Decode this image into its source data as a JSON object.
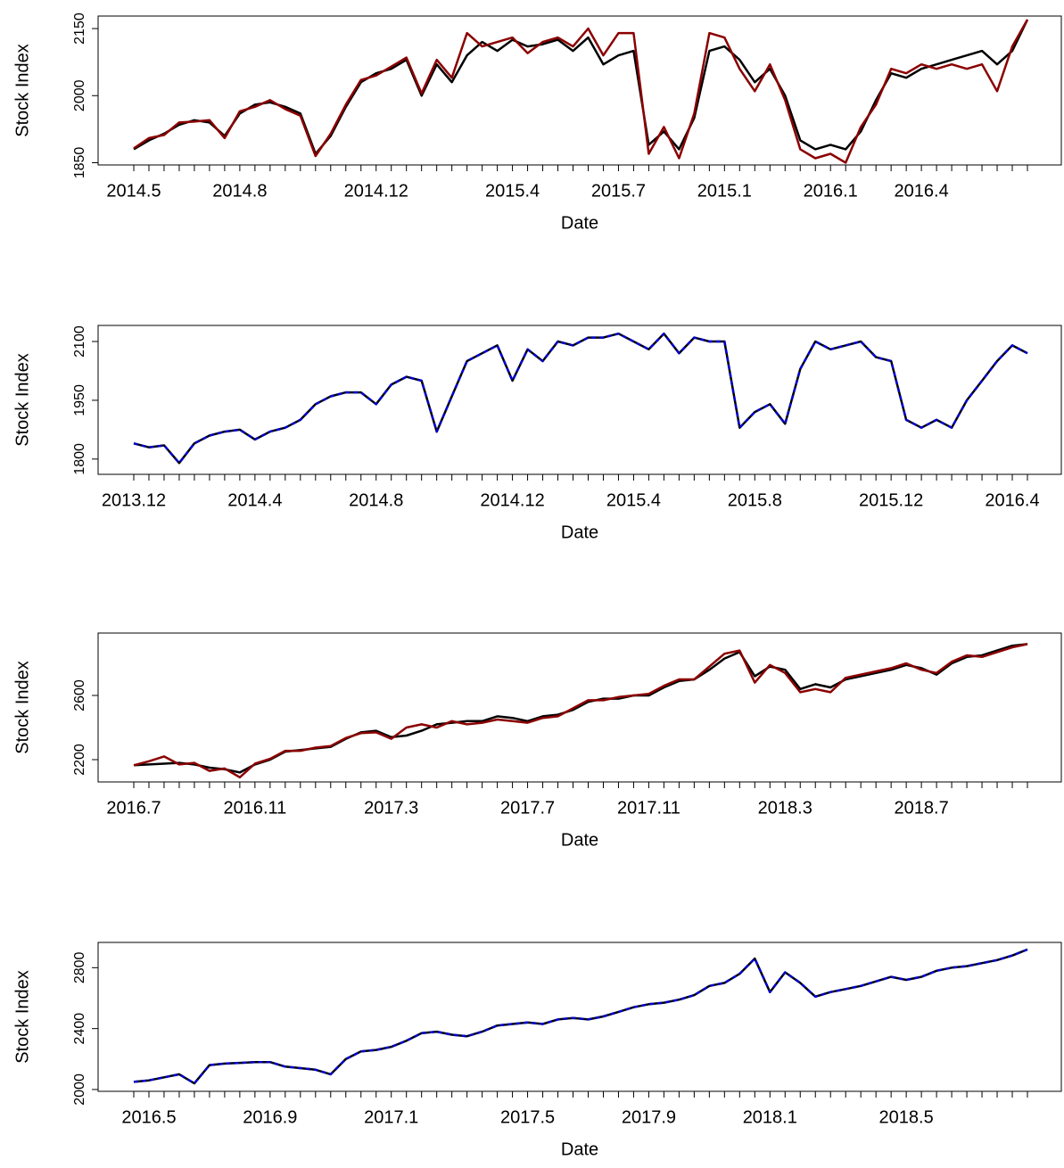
{
  "chart_data": [
    {
      "type": "line",
      "xlabel": "Date",
      "ylabel": "Stock Index",
      "ylim": [
        1845,
        2178
      ],
      "yticks": [
        1850,
        2000,
        2150
      ],
      "categories": [
        "2014.5",
        null,
        null,
        null,
        null,
        null,
        null,
        "2014.8",
        null,
        null,
        null,
        null,
        null,
        null,
        null,
        null,
        "2014.12",
        null,
        null,
        null,
        null,
        null,
        null,
        null,
        null,
        "2015.4",
        null,
        null,
        null,
        null,
        null,
        null,
        "2015.7",
        null,
        null,
        null,
        null,
        null,
        null,
        "2015.1",
        null,
        null,
        null,
        null,
        null,
        null,
        "2016.1",
        null,
        null,
        null,
        null,
        null,
        "2016.4",
        null,
        null,
        null,
        null,
        null,
        null,
        null
      ],
      "series": [
        {
          "color": "#000000",
          "linestyle": "solid",
          "values": [
            1880,
            1900,
            1915,
            1935,
            1945,
            1940,
            1910,
            1960,
            1980,
            1985,
            1975,
            1960,
            1870,
            1910,
            1975,
            2030,
            2050,
            2060,
            2080,
            2000,
            2070,
            2030,
            2090,
            2120,
            2100,
            2125,
            2110,
            2115,
            2125,
            2100,
            2130,
            2070,
            2090,
            2100,
            1890,
            1920,
            1880,
            1950,
            2100,
            2110,
            2080,
            2030,
            2060,
            2000,
            1900,
            1880,
            1890,
            1880,
            1920,
            1990,
            2050,
            2040,
            2060,
            2070,
            2080,
            2090,
            2100,
            2070,
            2100,
            2170
          ]
        },
        {
          "color": "#8b0000",
          "linestyle": "solid",
          "values": [
            1882,
            1905,
            1912,
            1940,
            1942,
            1945,
            1905,
            1965,
            1975,
            1990,
            1970,
            1955,
            1865,
            1915,
            1980,
            2035,
            2045,
            2065,
            2085,
            2005,
            2080,
            2040,
            2140,
            2110,
            2120,
            2130,
            2095,
            2120,
            2130,
            2110,
            2150,
            2090,
            2140,
            2140,
            1870,
            1930,
            1860,
            1960,
            2140,
            2130,
            2060,
            2010,
            2070,
            1990,
            1880,
            1860,
            1870,
            1850,
            1930,
            1980,
            2060,
            2050,
            2070,
            2060,
            2070,
            2060,
            2070,
            2010,
            2110,
            2170
          ]
        }
      ]
    },
    {
      "type": "line",
      "xlabel": "Date",
      "ylabel": "Stock Index",
      "ylim": [
        1761,
        2141
      ],
      "yticks": [
        1800,
        1950,
        2100
      ],
      "categories": [
        "2013.12",
        null,
        null,
        null,
        null,
        null,
        null,
        null,
        "2014.4",
        null,
        null,
        null,
        null,
        null,
        null,
        null,
        "2014.8",
        null,
        null,
        null,
        null,
        null,
        null,
        null,
        null,
        "2014.12",
        null,
        null,
        null,
        null,
        null,
        null,
        null,
        "2015.4",
        null,
        null,
        null,
        null,
        null,
        null,
        null,
        "2015.8",
        null,
        null,
        null,
        null,
        null,
        null,
        null,
        null,
        "2015.12",
        null,
        null,
        null,
        null,
        null,
        null,
        null,
        "2016.4",
        null
      ],
      "series": [
        {
          "color": "#000000",
          "linestyle": "solid",
          "values": [
            1840,
            1830,
            1835,
            1790,
            1840,
            1860,
            1870,
            1875,
            1850,
            1870,
            1880,
            1900,
            1940,
            1960,
            1970,
            1970,
            1940,
            1990,
            2010,
            2000,
            1870,
            1960,
            2050,
            2070,
            2090,
            2000,
            2080,
            2050,
            2100,
            2090,
            2110,
            2110,
            2120,
            2100,
            2080,
            2120,
            2070,
            2110,
            2100,
            2100,
            1880,
            1920,
            1940,
            1890,
            2030,
            2100,
            2080,
            2090,
            2100,
            2060,
            2050,
            1900,
            1880,
            1900,
            1880,
            1950,
            2000,
            2050,
            2090,
            2070
          ]
        },
        {
          "color": "#0000cd",
          "linestyle": "dashed",
          "values": [
            1840,
            1830,
            1835,
            1790,
            1840,
            1860,
            1870,
            1875,
            1850,
            1870,
            1880,
            1900,
            1940,
            1960,
            1970,
            1970,
            1940,
            1990,
            2010,
            2000,
            1870,
            1960,
            2050,
            2070,
            2090,
            2000,
            2080,
            2050,
            2100,
            2090,
            2110,
            2110,
            2120,
            2100,
            2080,
            2120,
            2070,
            2110,
            2100,
            2100,
            1880,
            1920,
            1940,
            1890,
            2030,
            2100,
            2080,
            2090,
            2100,
            2060,
            2050,
            1900,
            1880,
            1900,
            1880,
            1950,
            2000,
            2050,
            2090,
            2070
          ]
        }
      ]
    },
    {
      "type": "line",
      "xlabel": "Date",
      "ylabel": "Stock Index",
      "ylim": [
        2061,
        2989
      ],
      "yticks": [
        2200,
        2600
      ],
      "categories": [
        "2016.7",
        null,
        null,
        null,
        null,
        null,
        null,
        null,
        "2016.11",
        null,
        null,
        null,
        null,
        null,
        null,
        null,
        null,
        "2017.3",
        null,
        null,
        null,
        null,
        null,
        null,
        null,
        null,
        "2017.7",
        null,
        null,
        null,
        null,
        null,
        null,
        null,
        "2017.11",
        null,
        null,
        null,
        null,
        null,
        null,
        null,
        null,
        "2018.3",
        null,
        null,
        null,
        null,
        null,
        null,
        null,
        null,
        "2018.7",
        null,
        null,
        null,
        null,
        null,
        null,
        null
      ],
      "series": [
        {
          "color": "#000000",
          "linestyle": "solid",
          "values": [
            2165,
            2170,
            2175,
            2180,
            2170,
            2150,
            2140,
            2120,
            2170,
            2200,
            2250,
            2260,
            2270,
            2280,
            2330,
            2370,
            2380,
            2340,
            2350,
            2380,
            2420,
            2430,
            2440,
            2440,
            2470,
            2460,
            2440,
            2470,
            2480,
            2510,
            2560,
            2580,
            2580,
            2600,
            2600,
            2650,
            2690,
            2700,
            2760,
            2830,
            2870,
            2720,
            2780,
            2760,
            2640,
            2670,
            2650,
            2700,
            2720,
            2740,
            2760,
            2790,
            2770,
            2730,
            2800,
            2840,
            2850,
            2880,
            2910,
            2920
          ]
        },
        {
          "color": "#8b0000",
          "linestyle": "solid",
          "values": [
            2165,
            2190,
            2220,
            2170,
            2180,
            2130,
            2145,
            2090,
            2175,
            2205,
            2255,
            2255,
            2275,
            2285,
            2335,
            2365,
            2370,
            2330,
            2400,
            2420,
            2400,
            2440,
            2420,
            2430,
            2450,
            2440,
            2430,
            2460,
            2470,
            2520,
            2570,
            2570,
            2590,
            2600,
            2610,
            2660,
            2700,
            2700,
            2780,
            2860,
            2880,
            2680,
            2790,
            2740,
            2620,
            2640,
            2620,
            2710,
            2730,
            2750,
            2770,
            2800,
            2760,
            2740,
            2810,
            2850,
            2840,
            2870,
            2900,
            2920
          ]
        }
      ]
    },
    {
      "type": "line",
      "xlabel": "Date",
      "ylabel": "Stock Index",
      "ylim": [
        1988,
        2966
      ],
      "yticks": [
        2000,
        2400,
        2800
      ],
      "categories": [
        null,
        "2016.5",
        null,
        null,
        null,
        null,
        null,
        null,
        null,
        "2016.9",
        null,
        null,
        null,
        null,
        null,
        null,
        null,
        "2017.1",
        null,
        null,
        null,
        null,
        null,
        null,
        null,
        null,
        "2017.5",
        null,
        null,
        null,
        null,
        null,
        null,
        null,
        "2017.9",
        null,
        null,
        null,
        null,
        null,
        null,
        null,
        "2018.1",
        null,
        null,
        null,
        null,
        null,
        null,
        null,
        null,
        "2018.5",
        null,
        null,
        null,
        null,
        null,
        null,
        null,
        null
      ],
      "series": [
        {
          "color": "#000000",
          "linestyle": "solid",
          "values": [
            2050,
            2060,
            2080,
            2100,
            2040,
            2160,
            2170,
            2175,
            2180,
            2180,
            2150,
            2140,
            2130,
            2100,
            2200,
            2250,
            2260,
            2280,
            2320,
            2370,
            2380,
            2360,
            2350,
            2380,
            2420,
            2430,
            2440,
            2430,
            2460,
            2470,
            2460,
            2480,
            2510,
            2540,
            2560,
            2570,
            2590,
            2620,
            2680,
            2700,
            2760,
            2860,
            2640,
            2770,
            2700,
            2610,
            2640,
            2660,
            2680,
            2710,
            2740,
            2720,
            2740,
            2780,
            2800,
            2810,
            2830,
            2850,
            2880,
            2920
          ]
        },
        {
          "color": "#0000cd",
          "linestyle": "dashed",
          "values": [
            2050,
            2060,
            2080,
            2100,
            2040,
            2160,
            2170,
            2175,
            2180,
            2180,
            2150,
            2140,
            2130,
            2100,
            2200,
            2250,
            2260,
            2280,
            2320,
            2370,
            2380,
            2360,
            2350,
            2380,
            2420,
            2430,
            2440,
            2430,
            2460,
            2470,
            2460,
            2480,
            2510,
            2540,
            2560,
            2570,
            2590,
            2620,
            2680,
            2700,
            2760,
            2860,
            2640,
            2770,
            2700,
            2610,
            2640,
            2660,
            2680,
            2710,
            2740,
            2720,
            2740,
            2780,
            2800,
            2810,
            2830,
            2850,
            2880,
            2920
          ]
        }
      ]
    }
  ]
}
